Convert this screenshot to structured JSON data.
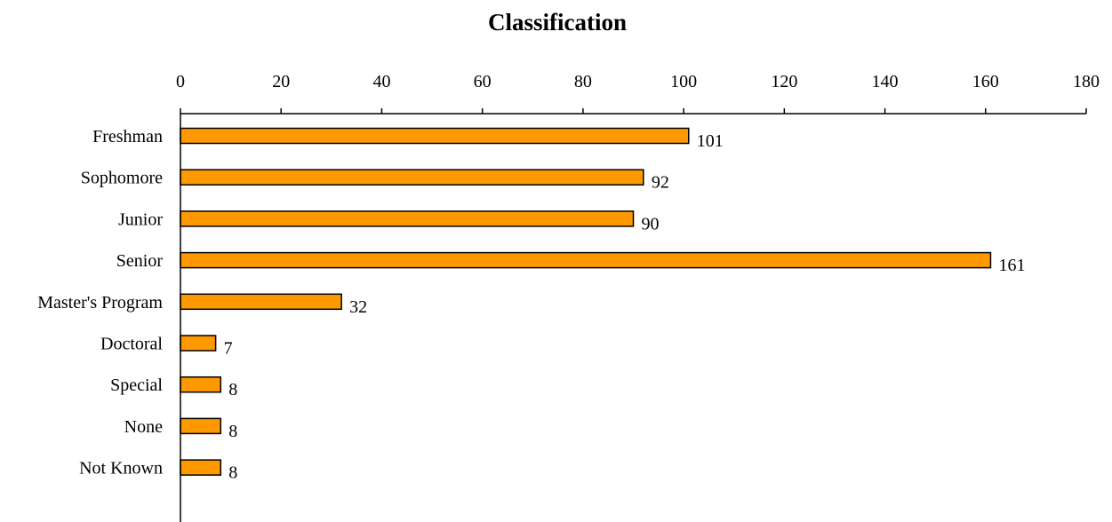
{
  "chart_data": {
    "type": "bar",
    "orientation": "horizontal",
    "title": "Classification",
    "categories": [
      "Freshman",
      "Sophomore",
      "Junior",
      "Senior",
      "Master's Program",
      "Doctoral",
      "Special",
      "None",
      "Not Known"
    ],
    "values": [
      101,
      92,
      90,
      161,
      32,
      7,
      8,
      8,
      8
    ],
    "xlabel": "",
    "ylabel": "",
    "xlim": [
      0,
      180
    ],
    "x_ticks": [
      "0",
      "20",
      "40",
      "60",
      "80",
      "100",
      "120",
      "140",
      "160",
      "180"
    ],
    "x_axis_position": "top",
    "grid": false,
    "legend": "none",
    "data_labels": true,
    "colors": {
      "bar_fill": "#FF9900",
      "bar_stroke": "#000000",
      "axis": "#000000",
      "text": "#000000"
    }
  }
}
